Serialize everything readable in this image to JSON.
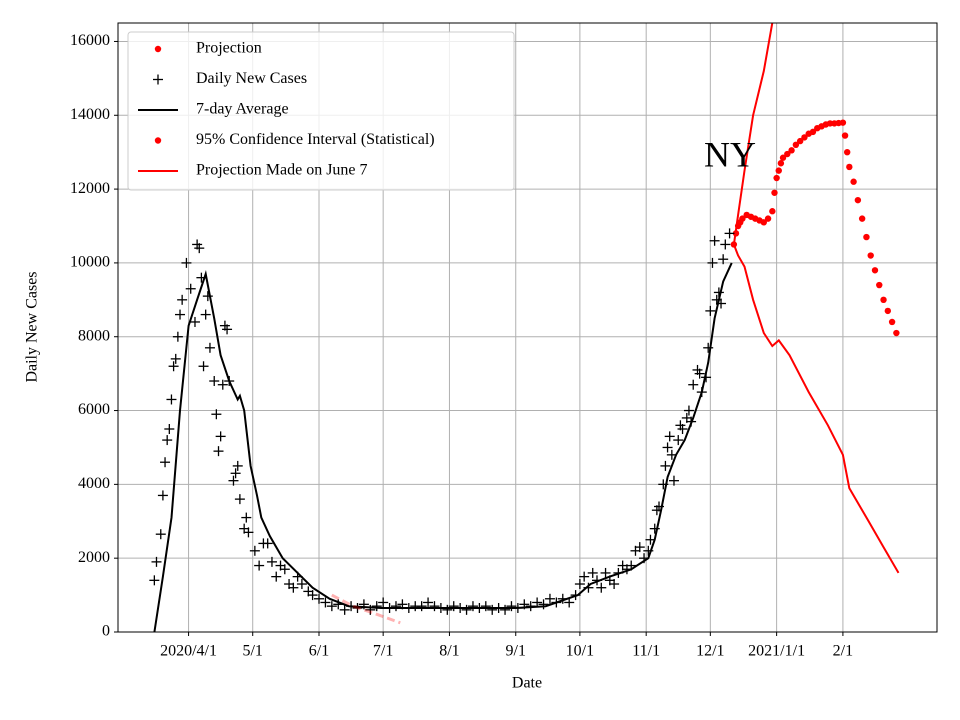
{
  "chart_data": {
    "type": "line",
    "annotation": "NY",
    "xlabel": "Date",
    "ylabel": "Daily New Cases",
    "xlim": [
      "2020-02-28",
      "2021-03-17"
    ],
    "ylim": [
      0,
      16500
    ],
    "xticks": [
      {
        "value": "2020-04-01",
        "label": "2020/4/1"
      },
      {
        "value": "2020-05-01",
        "label": "5/1"
      },
      {
        "value": "2020-06-01",
        "label": "6/1"
      },
      {
        "value": "2020-07-01",
        "label": "7/1"
      },
      {
        "value": "2020-08-01",
        "label": "8/1"
      },
      {
        "value": "2020-09-01",
        "label": "9/1"
      },
      {
        "value": "2020-10-01",
        "label": "10/1"
      },
      {
        "value": "2020-11-01",
        "label": "11/1"
      },
      {
        "value": "2020-12-01",
        "label": "12/1"
      },
      {
        "value": "2021-01-01",
        "label": "2021/1/1"
      },
      {
        "value": "2021-02-01",
        "label": "2/1"
      }
    ],
    "yticks": [
      0,
      2000,
      4000,
      6000,
      8000,
      10000,
      12000,
      14000,
      16000
    ],
    "grid": true,
    "legend": "upper left",
    "series": [
      {
        "name": "Projection",
        "color": "#ff0000",
        "marker": "dot",
        "x": [
          "2020-12-12",
          "2020-12-13",
          "2020-12-14",
          "2020-12-15",
          "2020-12-16",
          "2020-12-18",
          "2020-12-20",
          "2020-12-22",
          "2020-12-24",
          "2020-12-26",
          "2020-12-28",
          "2020-12-30",
          "2020-12-31",
          "2021-01-01",
          "2021-01-02",
          "2021-01-03",
          "2021-01-04",
          "2021-01-06",
          "2021-01-08",
          "2021-01-10",
          "2021-01-12",
          "2021-01-14",
          "2021-01-16",
          "2021-01-18",
          "2021-01-20",
          "2021-01-22",
          "2021-01-24",
          "2021-01-26",
          "2021-01-28",
          "2021-01-30",
          "2021-02-01",
          "2021-02-02",
          "2021-02-03",
          "2021-02-04",
          "2021-02-06",
          "2021-02-08",
          "2021-02-10",
          "2021-02-12",
          "2021-02-14",
          "2021-02-16",
          "2021-02-18",
          "2021-02-20",
          "2021-02-22",
          "2021-02-24",
          "2021-02-26"
        ],
        "values": [
          10500,
          10800,
          11000,
          11100,
          11200,
          11300,
          11250,
          11200,
          11150,
          11100,
          11200,
          11400,
          11900,
          12300,
          12500,
          12700,
          12850,
          12950,
          13050,
          13200,
          13300,
          13400,
          13500,
          13550,
          13650,
          13700,
          13750,
          13780,
          13780,
          13790,
          13800,
          13450,
          13000,
          12600,
          12200,
          11700,
          11200,
          10700,
          10200,
          9800,
          9400,
          9000,
          8700,
          8400,
          8100
        ]
      },
      {
        "name": "Daily New Cases",
        "color": "#000000",
        "marker": "plus",
        "x": [
          "2020-03-16",
          "2020-03-17",
          "2020-03-19",
          "2020-03-20",
          "2020-03-21",
          "2020-03-22",
          "2020-03-23",
          "2020-03-24",
          "2020-03-25",
          "2020-03-26",
          "2020-03-27",
          "2020-03-28",
          "2020-03-29",
          "2020-03-31",
          "2020-04-02",
          "2020-04-04",
          "2020-04-05",
          "2020-04-06",
          "2020-04-07",
          "2020-04-08",
          "2020-04-09",
          "2020-04-10",
          "2020-04-11",
          "2020-04-13",
          "2020-04-14",
          "2020-04-15",
          "2020-04-16",
          "2020-04-17",
          "2020-04-18",
          "2020-04-19",
          "2020-04-20",
          "2020-04-22",
          "2020-04-23",
          "2020-04-24",
          "2020-04-25",
          "2020-04-27",
          "2020-04-28",
          "2020-04-29",
          "2020-05-02",
          "2020-05-04",
          "2020-05-06",
          "2020-05-08",
          "2020-05-10",
          "2020-05-12",
          "2020-05-14",
          "2020-05-16",
          "2020-05-18",
          "2020-05-20",
          "2020-05-22",
          "2020-05-24",
          "2020-05-27",
          "2020-05-29",
          "2020-06-01",
          "2020-06-04",
          "2020-06-07",
          "2020-06-10",
          "2020-06-13",
          "2020-06-16",
          "2020-06-19",
          "2020-06-22",
          "2020-06-25",
          "2020-06-28",
          "2020-07-01",
          "2020-07-04",
          "2020-07-07",
          "2020-07-10",
          "2020-07-13",
          "2020-07-16",
          "2020-07-19",
          "2020-07-22",
          "2020-07-25",
          "2020-07-28",
          "2020-07-31",
          "2020-08-03",
          "2020-08-06",
          "2020-08-09",
          "2020-08-12",
          "2020-08-15",
          "2020-08-18",
          "2020-08-21",
          "2020-08-24",
          "2020-08-27",
          "2020-08-30",
          "2020-09-02",
          "2020-09-05",
          "2020-09-08",
          "2020-09-11",
          "2020-09-14",
          "2020-09-17",
          "2020-09-20",
          "2020-09-23",
          "2020-09-26",
          "2020-09-29",
          "2020-10-01",
          "2020-10-03",
          "2020-10-05",
          "2020-10-07",
          "2020-10-09",
          "2020-10-11",
          "2020-10-13",
          "2020-10-15",
          "2020-10-17",
          "2020-10-19",
          "2020-10-21",
          "2020-10-23",
          "2020-10-25",
          "2020-10-27",
          "2020-10-29",
          "2020-10-31",
          "2020-11-02",
          "2020-11-03",
          "2020-11-05",
          "2020-11-06",
          "2020-11-07",
          "2020-11-09",
          "2020-11-10",
          "2020-11-11",
          "2020-11-12",
          "2020-11-13",
          "2020-11-14",
          "2020-11-16",
          "2020-11-17",
          "2020-11-18",
          "2020-11-20",
          "2020-11-21",
          "2020-11-22",
          "2020-11-23",
          "2020-11-25",
          "2020-11-26",
          "2020-11-27",
          "2020-11-29",
          "2020-11-30",
          "2020-12-01",
          "2020-12-02",
          "2020-12-03",
          "2020-12-04",
          "2020-12-05",
          "2020-12-06",
          "2020-12-07",
          "2020-12-08",
          "2020-12-10"
        ],
        "values": [
          1400,
          1900,
          2650,
          3700,
          4600,
          5200,
          5500,
          6300,
          7200,
          7400,
          8000,
          8600,
          9000,
          10000,
          9300,
          8400,
          10500,
          10400,
          9600,
          7200,
          8600,
          9100,
          7700,
          6800,
          5900,
          4900,
          5300,
          6700,
          8300,
          8200,
          6800,
          4100,
          4300,
          4500,
          3600,
          2800,
          3100,
          2700,
          2200,
          1800,
          2400,
          2400,
          1900,
          1500,
          1800,
          1700,
          1300,
          1200,
          1500,
          1300,
          1100,
          1000,
          900,
          800,
          700,
          750,
          600,
          700,
          650,
          750,
          600,
          700,
          800,
          650,
          700,
          750,
          650,
          700,
          700,
          800,
          700,
          650,
          600,
          700,
          650,
          600,
          700,
          650,
          700,
          600,
          650,
          600,
          700,
          650,
          750,
          700,
          800,
          750,
          900,
          800,
          900,
          800,
          1000,
          1300,
          1500,
          1200,
          1600,
          1400,
          1200,
          1600,
          1400,
          1300,
          1600,
          1800,
          1700,
          1800,
          2200,
          2300,
          2000,
          2200,
          2500,
          2800,
          3300,
          3400,
          4000,
          4500,
          5000,
          5300,
          4800,
          4100,
          5200,
          5600,
          5500,
          5800,
          6000,
          5700,
          6700,
          7100,
          7000,
          6500,
          6900,
          7700,
          8700,
          10000,
          10600,
          9000,
          9200,
          8900,
          10100,
          10500,
          10800
        ]
      },
      {
        "name": "7-day Average",
        "color": "#000000",
        "marker": "line",
        "x": [
          "2020-03-16",
          "2020-03-20",
          "2020-03-24",
          "2020-03-28",
          "2020-04-01",
          "2020-04-05",
          "2020-04-09",
          "2020-04-13",
          "2020-04-16",
          "2020-04-20",
          "2020-04-24",
          "2020-04-25",
          "2020-04-27",
          "2020-04-30",
          "2020-05-03",
          "2020-05-05",
          "2020-05-09",
          "2020-05-15",
          "2020-05-22",
          "2020-05-29",
          "2020-06-06",
          "2020-06-15",
          "2020-06-30",
          "2020-07-15",
          "2020-08-01",
          "2020-08-15",
          "2020-09-01",
          "2020-09-15",
          "2020-09-30",
          "2020-10-06",
          "2020-10-15",
          "2020-10-25",
          "2020-11-02",
          "2020-11-05",
          "2020-11-08",
          "2020-11-11",
          "2020-11-15",
          "2020-11-19",
          "2020-11-23",
          "2020-11-27",
          "2020-11-30",
          "2020-12-03",
          "2020-12-07",
          "2020-12-11"
        ],
        "values": [
          0,
          1500,
          3100,
          6000,
          8300,
          9000,
          9700,
          8500,
          7500,
          6800,
          6300,
          6400,
          6000,
          4500,
          3700,
          3100,
          2600,
          2000,
          1600,
          1200,
          900,
          700,
          650,
          650,
          650,
          650,
          650,
          700,
          1000,
          1300,
          1500,
          1700,
          2000,
          2500,
          3300,
          4200,
          4800,
          5200,
          5800,
          6500,
          7300,
          8500,
          9500,
          10000
        ]
      },
      {
        "name": "95% Confidence Interval (Statistical)",
        "color": "#ff0000",
        "marker": "dot",
        "x": [
          "2020-12-12",
          "2020-12-14",
          "2020-12-17",
          "2020-12-21",
          "2020-12-26",
          "2020-12-30",
          "2021-01-02",
          "2021-01-07",
          "2021-01-16",
          "2021-01-25",
          "2021-02-01",
          "2021-02-04",
          "2021-02-13",
          "2021-02-20",
          "2021-02-27"
        ],
        "upper": [
          10500,
          11300,
          12500,
          14000,
          15200,
          16500,
          null,
          null,
          null,
          null,
          null,
          null,
          null,
          null,
          null
        ],
        "lower": [
          10500,
          10200,
          9900,
          9000,
          8100,
          7750,
          7900,
          7500,
          6500,
          5600,
          4800,
          3900,
          3000,
          2300,
          1600
        ]
      },
      {
        "name": "Projection Made on June 7",
        "color": "#ff0000",
        "marker": "line",
        "linestyle": "dashed",
        "x": [
          "2020-06-07",
          "2020-06-17",
          "2020-06-27",
          "2020-07-09"
        ],
        "values": [
          1000,
          700,
          500,
          250
        ]
      }
    ]
  }
}
